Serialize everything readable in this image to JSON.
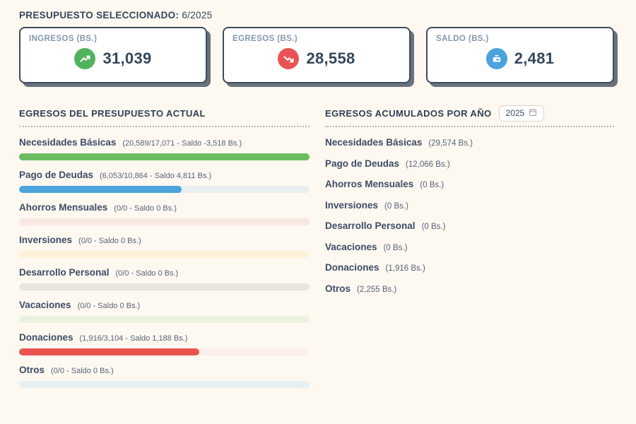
{
  "header": {
    "label": "PRESUPUESTO SELECCIONADO:",
    "value": "6/2025"
  },
  "summary_cards": [
    {
      "title": "INGRESOS (BS.)",
      "value": "31,039",
      "icon": "trend-up-icon",
      "color": "#52b35e"
    },
    {
      "title": "EGRESOS (BS.)",
      "value": "28,558",
      "icon": "trend-down-icon",
      "color": "#ea5356"
    },
    {
      "title": "SALDO (BS.)",
      "value": "2,481",
      "icon": "piggy-bank-icon",
      "color": "#4aa3dc"
    }
  ],
  "current_budget": {
    "title": "EGRESOS DEL PRESUPUESTO ACTUAL",
    "categories": [
      {
        "name": "Necesidades Básicas",
        "detail": "(20,589/17,071 - Saldo -3,518 Bs.)",
        "fill_percent": 100,
        "fill_color": "#6cbd62",
        "track_color": "#6cbd62"
      },
      {
        "name": "Pago de Deudas",
        "detail": "(6,053/10,864 - Saldo 4,811 Bs.)",
        "fill_percent": 56,
        "fill_color": "#4da3dc",
        "track_color": "#e9eef0"
      },
      {
        "name": "Ahorros Mensuales",
        "detail": "(0/0 - Saldo 0 Bs.)",
        "fill_percent": 0,
        "fill_color": "#ea5356",
        "track_color": "#f9e7e1"
      },
      {
        "name": "Inversiones",
        "detail": "(0/0 - Saldo 0 Bs.)",
        "fill_percent": 0,
        "fill_color": "#e8c54e",
        "track_color": "#fdf3da"
      },
      {
        "name": "Desarrollo Personal",
        "detail": "(0/0 - Saldo 0 Bs.)",
        "fill_percent": 0,
        "fill_color": "#9aa0a6",
        "track_color": "#e7e5e0"
      },
      {
        "name": "Vacaciones",
        "detail": "(0/0 - Saldo 0 Bs.)",
        "fill_percent": 0,
        "fill_color": "#6cbd62",
        "track_color": "#ebf1df"
      },
      {
        "name": "Donaciones",
        "detail": "(1,916/3,104 - Saldo 1,188 Bs.)",
        "fill_percent": 62,
        "fill_color": "#e8544e",
        "track_color": "#fdeeea"
      },
      {
        "name": "Otros",
        "detail": "(0/0 - Saldo 0 Bs.)",
        "fill_percent": 0,
        "fill_color": "#4da3dc",
        "track_color": "#e6eff1"
      }
    ]
  },
  "accumulated": {
    "title": "EGRESOS ACUMULADOS POR AÑO",
    "year": "2025",
    "items": [
      {
        "name": "Necesidades Básicas",
        "value": "(29,574 Bs.)"
      },
      {
        "name": "Pago de Deudas",
        "value": "(12,066 Bs.)"
      },
      {
        "name": "Ahorros Mensuales",
        "value": "(0 Bs.)"
      },
      {
        "name": "Inversiones",
        "value": "(0 Bs.)"
      },
      {
        "name": "Desarrollo Personal",
        "value": "(0 Bs.)"
      },
      {
        "name": "Vacaciones",
        "value": "(0 Bs.)"
      },
      {
        "name": "Donaciones",
        "value": "(1,916 Bs.)"
      },
      {
        "name": "Otros",
        "value": "(2,255 Bs.)"
      }
    ]
  }
}
